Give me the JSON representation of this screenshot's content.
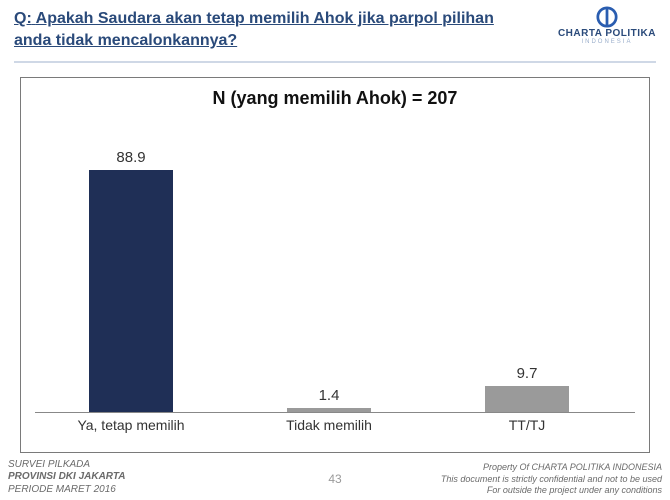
{
  "header": {
    "q_prefix": "Q:",
    "question": "Apakah Saudara akan tetap memilih Ahok jika parpol pilihan anda tidak mencalonkannya?",
    "question_color": "#2a4a7a",
    "question_fontsize": 16,
    "logo": {
      "name": "CHARTA POLITIKA",
      "sub": "INDONESIA",
      "circle_color": "#2a5db0",
      "text_color": "#2a4a7a"
    },
    "divider_color": "#cfd8e6"
  },
  "chart": {
    "type": "bar",
    "title": "N (yang memilih Ahok) = 207",
    "title_fontsize": 18,
    "title_color": "#111111",
    "border_color": "#7a7a7a",
    "background_color": "#ffffff",
    "axis_color": "#888888",
    "ylim": [
      0,
      100
    ],
    "bar_width_pct": 14,
    "label_fontsize": 14,
    "value_fontsize": 15,
    "value_color": "#333333",
    "categories": [
      "Ya, tetap memilih",
      "Tidak memilih",
      "TT/TJ"
    ],
    "values": [
      88.9,
      1.4,
      9.7
    ],
    "bar_colors": [
      "#1f2f56",
      "#9a9a9a",
      "#9a9a9a"
    ],
    "x_positions_pct": [
      16,
      49,
      82
    ]
  },
  "footer": {
    "left_line1": "SURVEI PILKADA",
    "left_line2": "PROVINSI DKI JAKARTA",
    "left_line3": "PERIODE  MARET 2016",
    "page_number": "43",
    "right_line1": "Property Of CHARTA POLITIKA INDONESIA",
    "right_line2": "This document is strictly confidential and not to be used",
    "right_line3": "For  outside the project under any conditions",
    "text_color": "#6a6a6a"
  }
}
